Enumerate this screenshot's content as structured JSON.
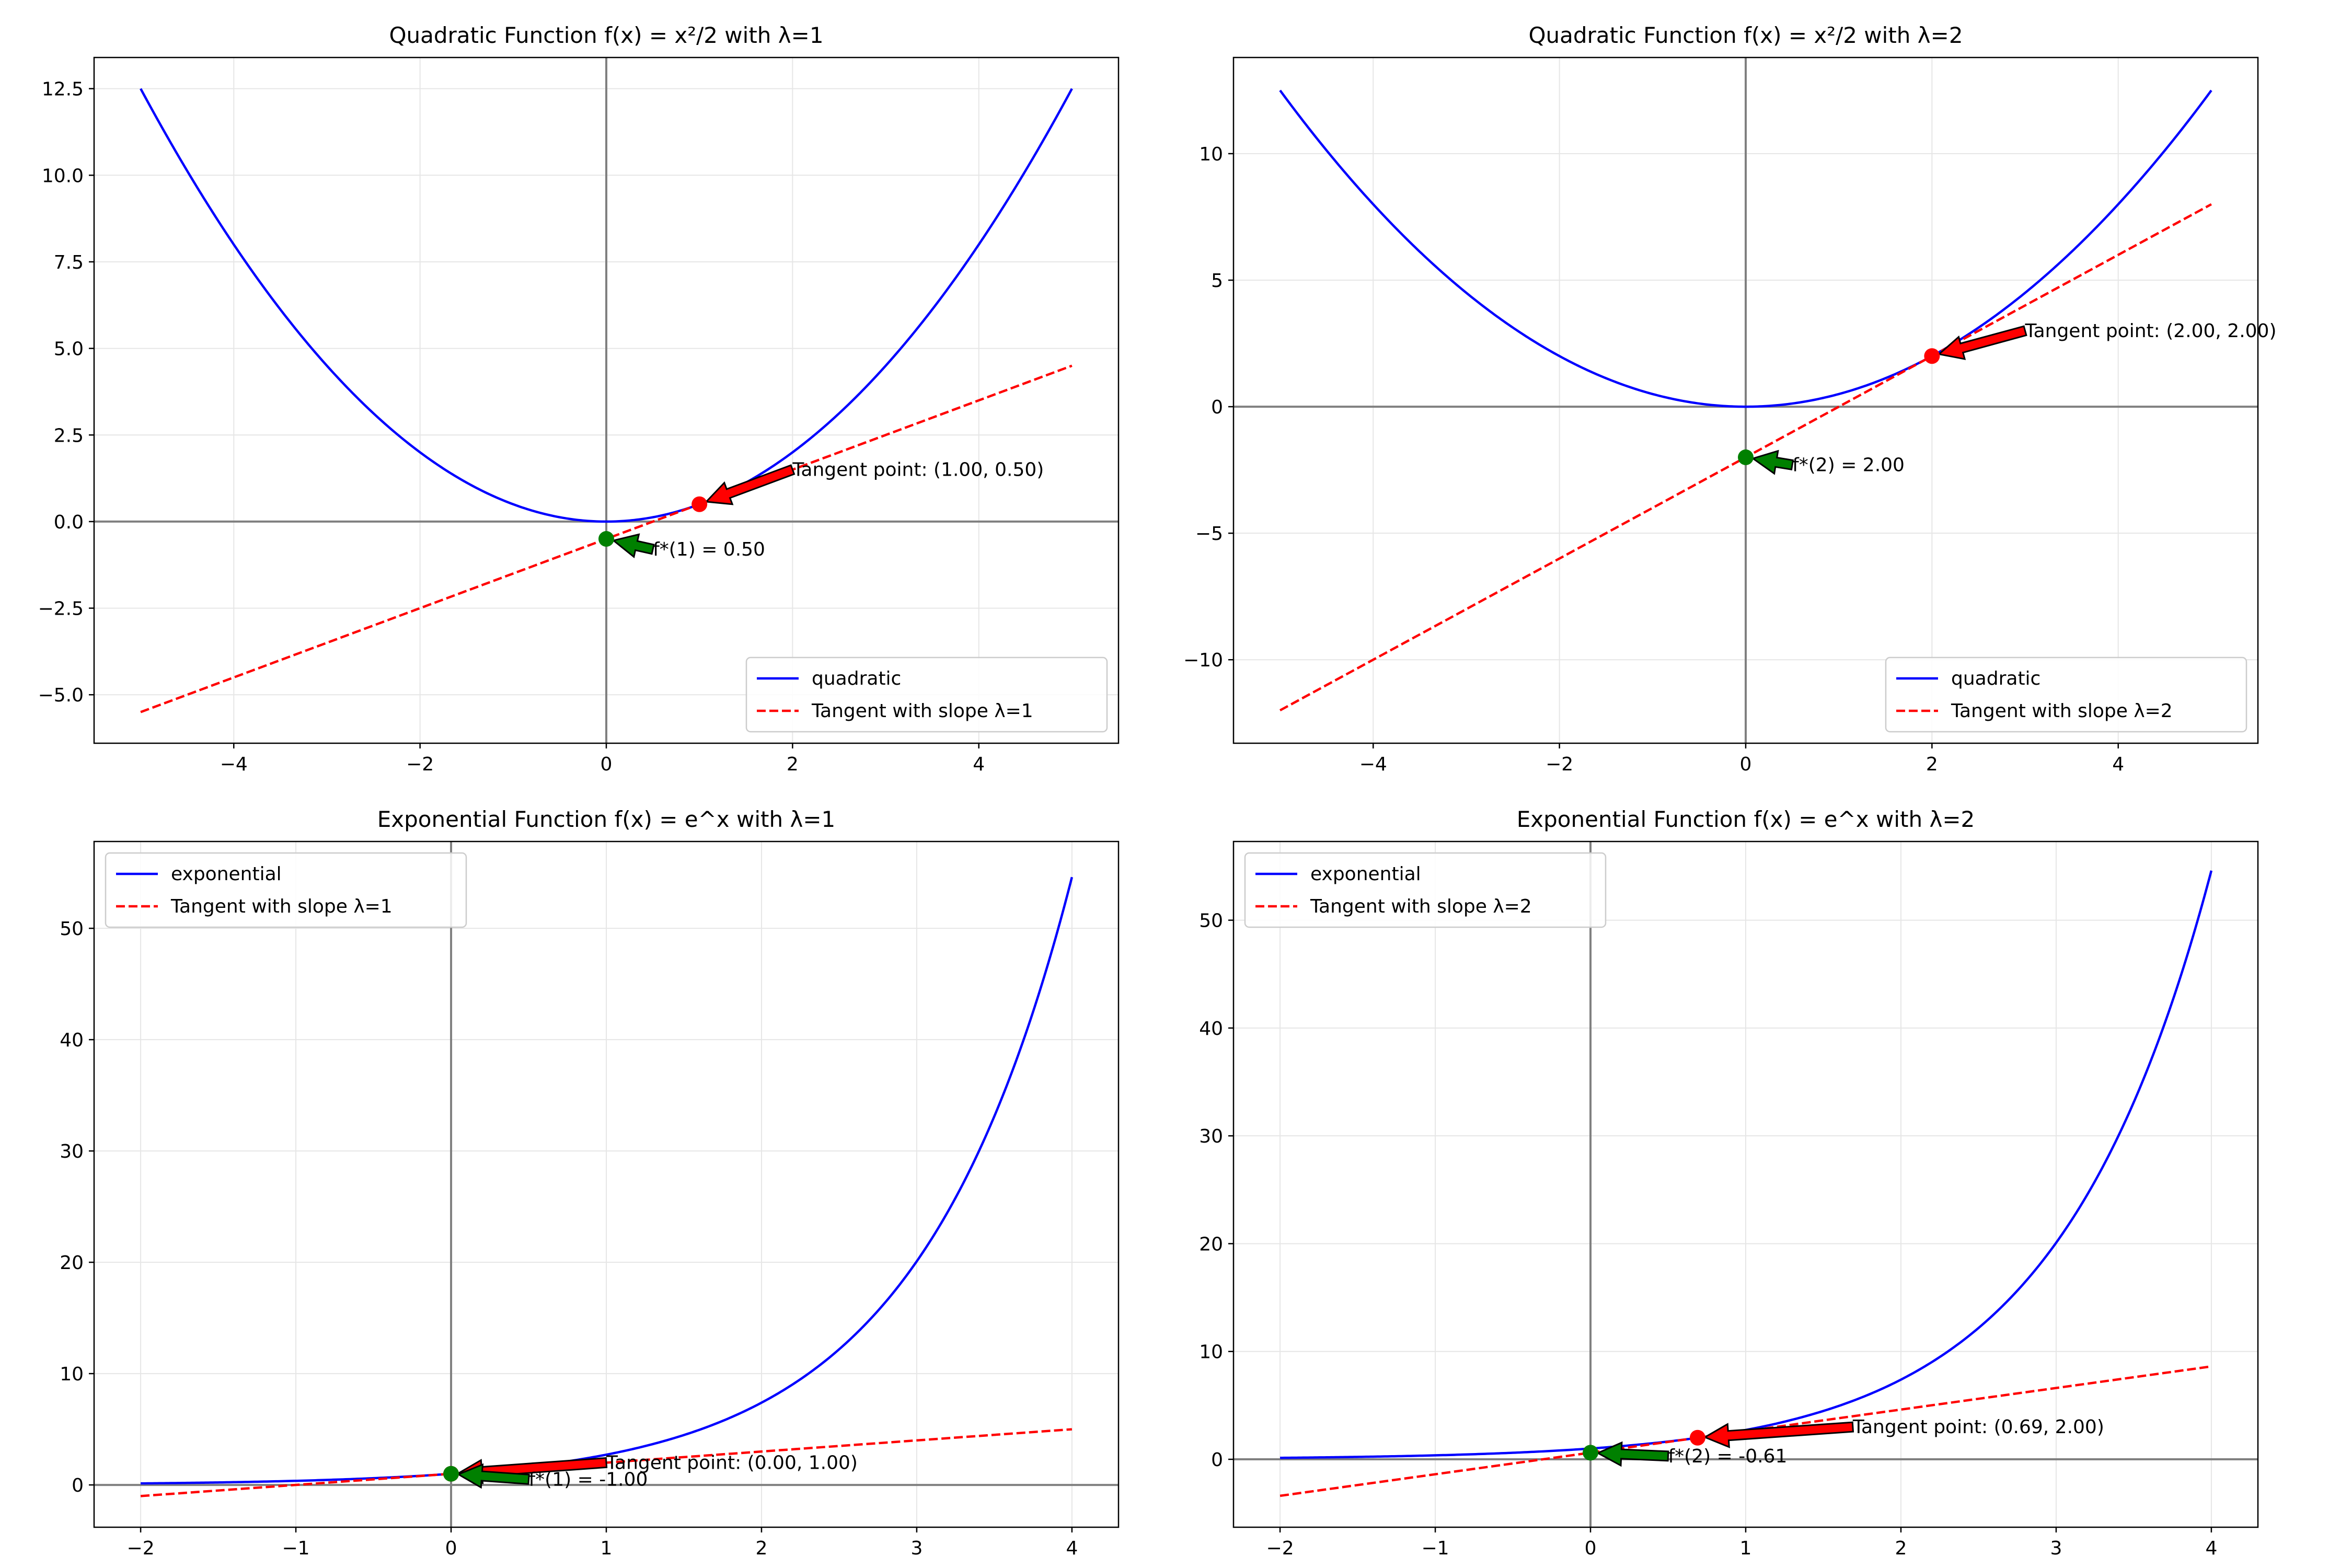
{
  "figure": {
    "background": "#ffffff"
  },
  "colors": {
    "curve": "#0000ff",
    "tangent": "#ff0000",
    "tangent_marker": "#ff0000",
    "conjugate_marker": "#008000",
    "axis_line": "#808080",
    "grid": "#e6e6e6"
  },
  "chart_data": [
    {
      "type": "line",
      "title": "Quadratic Function f(x) = x²/2 with λ=1",
      "function": "quadratic",
      "lambda": 1,
      "xlim": [
        -5.5,
        5.5
      ],
      "ylim": [
        -6.4,
        13.4
      ],
      "xticks": [
        -4,
        -2,
        0,
        2,
        4
      ],
      "xtick_labels": [
        "−4",
        "−2",
        "0",
        "2",
        "4"
      ],
      "yticks": [
        -5.0,
        -2.5,
        0.0,
        2.5,
        5.0,
        7.5,
        10.0,
        12.5
      ],
      "ytick_labels": [
        "−5.0",
        "−2.5",
        "0.0",
        "2.5",
        "5.0",
        "7.5",
        "10.0",
        "12.5"
      ],
      "grid": true,
      "legend_position": "lower right",
      "series": [
        {
          "name": "quadratic",
          "style": "solid",
          "color": "#0000ff",
          "x_range": [
            -5,
            5
          ]
        },
        {
          "name": "Tangent with slope λ=1",
          "style": "dashed",
          "color": "#ff0000",
          "slope": 1,
          "intercept": -0.5,
          "x_range": [
            -5,
            5
          ]
        }
      ],
      "tangent_point": {
        "x": 1.0,
        "y": 0.5,
        "label": "Tangent point: (1.00, 0.50)",
        "label_at": [
          2.0,
          1.5
        ]
      },
      "conjugate_point": {
        "x": 0.0,
        "y": -0.5,
        "label": "f*(1) = 0.50",
        "label_at": [
          0.5,
          -0.8
        ]
      }
    },
    {
      "type": "line",
      "title": "Quadratic Function f(x) = x²/2 with λ=2",
      "function": "quadratic",
      "lambda": 2,
      "xlim": [
        -5.5,
        5.5
      ],
      "ylim": [
        -13.3,
        13.8
      ],
      "xticks": [
        -4,
        -2,
        0,
        2,
        4
      ],
      "xtick_labels": [
        "−4",
        "−2",
        "0",
        "2",
        "4"
      ],
      "yticks": [
        -10,
        -5,
        0,
        5,
        10
      ],
      "ytick_labels": [
        "−10",
        "−5",
        "0",
        "5",
        "10"
      ],
      "grid": true,
      "legend_position": "lower right",
      "series": [
        {
          "name": "quadratic",
          "style": "solid",
          "color": "#0000ff",
          "x_range": [
            -5,
            5
          ]
        },
        {
          "name": "Tangent with slope λ=2",
          "style": "dashed",
          "color": "#ff0000",
          "slope": 2,
          "intercept": -2,
          "x_range": [
            -5,
            5
          ]
        }
      ],
      "tangent_point": {
        "x": 2.0,
        "y": 2.0,
        "label": "Tangent point: (2.00, 2.00)",
        "label_at": [
          3.0,
          3.0
        ]
      },
      "conjugate_point": {
        "x": 0.0,
        "y": -2.0,
        "label": "f*(2) = 2.00",
        "label_at": [
          0.5,
          -2.3
        ]
      }
    },
    {
      "type": "line",
      "title": "Exponential Function f(x) = e^x with λ=1",
      "function": "exponential",
      "lambda": 1,
      "xlim": [
        -2.3,
        4.3
      ],
      "ylim": [
        -3.8,
        57.8
      ],
      "xticks": [
        -2,
        -1,
        0,
        1,
        2,
        3,
        4
      ],
      "xtick_labels": [
        "−2",
        "−1",
        "0",
        "1",
        "2",
        "3",
        "4"
      ],
      "yticks": [
        0,
        10,
        20,
        30,
        40,
        50
      ],
      "ytick_labels": [
        "0",
        "10",
        "20",
        "30",
        "40",
        "50"
      ],
      "grid": true,
      "legend_position": "upper left",
      "series": [
        {
          "name": "exponential",
          "style": "solid",
          "color": "#0000ff",
          "x_range": [
            -2,
            4
          ]
        },
        {
          "name": "Tangent with slope λ=1",
          "style": "dashed",
          "color": "#ff0000",
          "slope": 1,
          "intercept": 1,
          "x_range": [
            -2,
            4
          ]
        }
      ],
      "tangent_point": {
        "x": 0.0,
        "y": 1.0,
        "label": "Tangent point: (0.00, 1.00)",
        "label_at": [
          1.0,
          2.0
        ]
      },
      "conjugate_point": {
        "x": 0.0,
        "y": 1.0,
        "label": "f*(1) = -1.00",
        "label_at": [
          0.5,
          0.5
        ]
      }
    },
    {
      "type": "line",
      "title": "Exponential Function f(x) = e^x with λ=2",
      "function": "exponential",
      "lambda": 2,
      "xlim": [
        -2.3,
        4.3
      ],
      "ylim": [
        -6.3,
        57.3
      ],
      "xticks": [
        -2,
        -1,
        0,
        1,
        2,
        3,
        4
      ],
      "xtick_labels": [
        "−2",
        "−1",
        "0",
        "1",
        "2",
        "3",
        "4"
      ],
      "yticks": [
        0,
        10,
        20,
        30,
        40,
        50
      ],
      "ytick_labels": [
        "0",
        "10",
        "20",
        "30",
        "40",
        "50"
      ],
      "grid": true,
      "legend_position": "upper left",
      "series": [
        {
          "name": "exponential",
          "style": "solid",
          "color": "#0000ff",
          "x_range": [
            -2,
            4
          ]
        },
        {
          "name": "Tangent with slope λ=2",
          "style": "dashed",
          "color": "#ff0000",
          "slope": 2,
          "intercept": 0.614,
          "x_range": [
            -2,
            4
          ]
        }
      ],
      "tangent_point": {
        "x": 0.69,
        "y": 2.0,
        "label": "Tangent point: (0.69, 2.00)",
        "label_at": [
          1.69,
          3.0
        ]
      },
      "conjugate_point": {
        "x": 0.0,
        "y": 0.614,
        "label": "f*(2) = -0.61",
        "label_at": [
          0.5,
          0.3
        ]
      }
    }
  ]
}
